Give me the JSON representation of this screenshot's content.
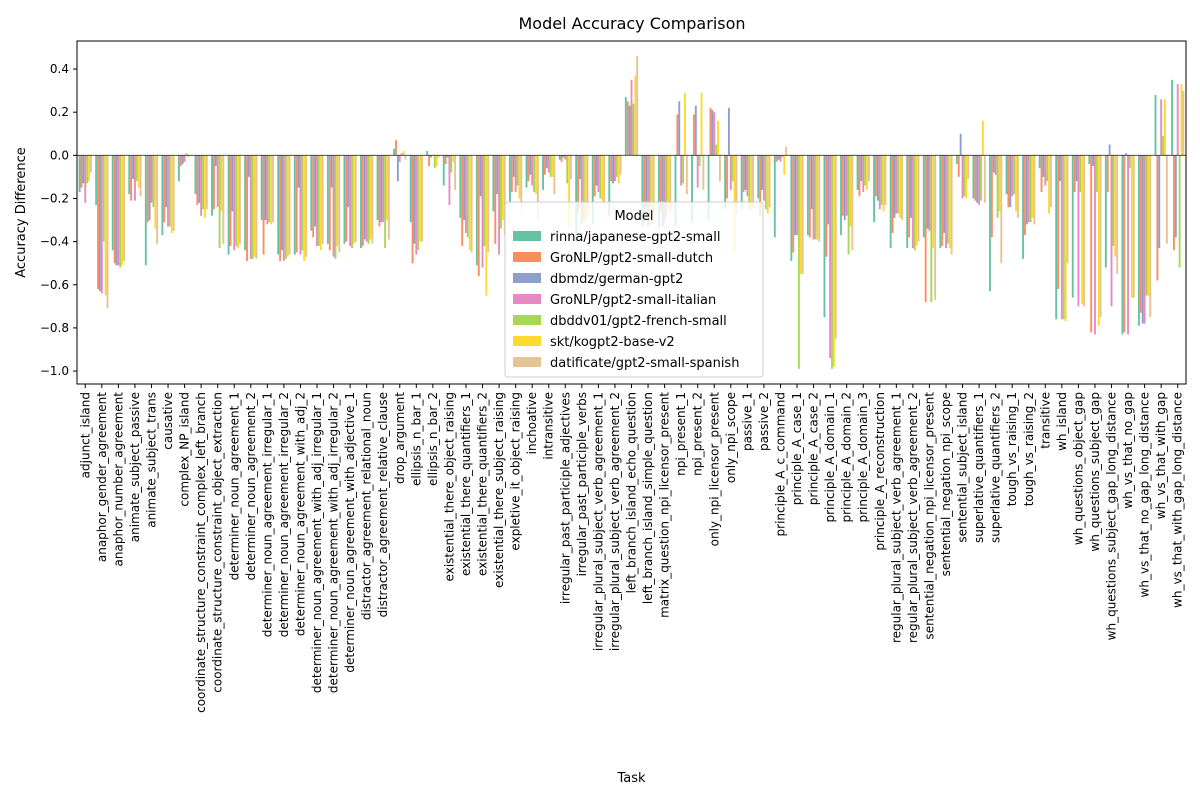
{
  "chart_data": {
    "type": "bar",
    "title": "Model Accuracy Comparison",
    "xlabel": "Task",
    "ylabel": "Accuracy Difference",
    "ylim": [
      -1.06,
      0.53
    ],
    "yticks": [
      0.4,
      0.2,
      0.0,
      -0.2,
      -0.4,
      -0.6,
      -0.8,
      -1.0
    ],
    "ytick_labels": [
      "0.4",
      "0.2",
      "0.0",
      "−0.2",
      "−0.4",
      "−0.6",
      "−0.8",
      "−1.0"
    ],
    "grid": false,
    "legend": {
      "title": "Model",
      "placement": "center"
    },
    "categories": [
      "adjunct_island",
      "anaphor_gender_agreement",
      "anaphor_number_agreement",
      "animate_subject_passive",
      "animate_subject_trans",
      "causative",
      "complex_NP_island",
      "coordinate_structure_constraint_complex_left_branch",
      "coordinate_structure_constraint_object_extraction",
      "determiner_noun_agreement_1",
      "determiner_noun_agreement_2",
      "determiner_noun_agreement_irregular_1",
      "determiner_noun_agreement_irregular_2",
      "determiner_noun_agreement_with_adj_2",
      "determiner_noun_agreement_with_adj_irregular_1",
      "determiner_noun_agreement_with_adj_irregular_2",
      "determiner_noun_agreement_with_adjective_1",
      "distractor_agreement_relational_noun",
      "distractor_agreement_relative_clause",
      "drop_argument",
      "ellipsis_n_bar_1",
      "ellipsis_n_bar_2",
      "existential_there_object_raising",
      "existential_there_quantifiers_1",
      "existential_there_quantifiers_2",
      "existential_there_subject_raising",
      "expletive_it_object_raising",
      "inchoative",
      "intransitive",
      "irregular_past_participle_adjectives",
      "irregular_past_participle_verbs",
      "irregular_plural_subject_verb_agreement_1",
      "irregular_plural_subject_verb_agreement_2",
      "left_branch_island_echo_question",
      "left_branch_island_simple_question",
      "matrix_question_npi_licensor_present",
      "npi_present_1",
      "npi_present_2",
      "only_npi_licensor_present",
      "only_npi_scope",
      "passive_1",
      "passive_2",
      "principle_A_c_command",
      "principle_A_case_1",
      "principle_A_case_2",
      "principle_A_domain_1",
      "principle_A_domain_2",
      "principle_A_domain_3",
      "principle_A_reconstruction",
      "regular_plural_subject_verb_agreement_1",
      "regular_plural_subject_verb_agreement_2",
      "sentential_negation_npi_licensor_present",
      "sentential_negation_npi_scope",
      "sentential_subject_island",
      "superlative_quantifiers_1",
      "superlative_quantifiers_2",
      "tough_vs_raising_1",
      "tough_vs_raising_2",
      "transitive",
      "wh_island",
      "wh_questions_object_gap",
      "wh_questions_subject_gap",
      "wh_questions_subject_gap_long_distance",
      "wh_vs_that_no_gap",
      "wh_vs_that_no_gap_long_distance",
      "wh_vs_that_with_gap",
      "wh_vs_that_with_gap_long_distance"
    ],
    "series": [
      {
        "name": "rinna/japanese-gpt2-small",
        "color": "#66c2a5",
        "values": [
          -0.17,
          -0.23,
          -0.44,
          -0.18,
          -0.51,
          -0.37,
          -0.12,
          -0.18,
          -0.28,
          -0.46,
          -0.44,
          -0.3,
          -0.46,
          -0.46,
          -0.35,
          -0.41,
          -0.41,
          -0.43,
          -0.3,
          0.03,
          -0.31,
          0.02,
          -0.14,
          -0.29,
          -0.51,
          -0.26,
          -0.22,
          -0.15,
          -0.16,
          -0.02,
          -0.4,
          -0.32,
          -0.28,
          0.27,
          -0.33,
          -0.34,
          -0.33,
          -0.31,
          -0.3,
          -0.25,
          -0.25,
          -0.2,
          -0.38,
          -0.49,
          -0.37,
          -0.75,
          -0.37,
          -0.16,
          -0.31,
          -0.43,
          -0.43,
          -0.38,
          -0.43,
          -0.04,
          -0.2,
          -0.63,
          -0.18,
          -0.48,
          -0.06,
          -0.76,
          -0.66,
          -0.04,
          -0.52,
          -0.83,
          -0.79,
          0.28,
          0.35
        ]
      },
      {
        "name": "GroNLP/gpt2-small-dutch",
        "color": "#fc8d62",
        "values": [
          -0.15,
          -0.62,
          -0.5,
          -0.21,
          -0.31,
          -0.31,
          -0.05,
          -0.23,
          -0.25,
          -0.42,
          -0.49,
          -0.46,
          -0.49,
          -0.45,
          -0.38,
          -0.44,
          -0.4,
          -0.42,
          -0.33,
          0.07,
          -0.5,
          -0.05,
          -0.04,
          -0.42,
          -0.56,
          -0.41,
          -0.17,
          -0.12,
          -0.09,
          -0.03,
          -0.27,
          -0.19,
          -0.12,
          0.25,
          -0.31,
          -0.26,
          0.19,
          0.19,
          0.22,
          -0.2,
          -0.17,
          -0.28,
          -0.03,
          -0.45,
          -0.38,
          -0.47,
          -0.28,
          -0.19,
          -0.19,
          -0.36,
          -0.38,
          -0.68,
          -0.42,
          -0.1,
          -0.21,
          -0.38,
          -0.24,
          -0.37,
          -0.17,
          -0.62,
          -0.17,
          -0.82,
          -0.17,
          -0.82,
          -0.73,
          -0.58,
          -0.44
        ]
      },
      {
        "name": "dbmdz/german-gpt2",
        "color": "#8da0cb",
        "values": [
          -0.13,
          -0.63,
          -0.51,
          -0.11,
          -0.3,
          -0.24,
          -0.04,
          -0.22,
          -0.05,
          -0.26,
          -0.1,
          -0.3,
          -0.44,
          -0.15,
          -0.33,
          -0.15,
          -0.24,
          -0.39,
          -0.31,
          -0.12,
          -0.41,
          -0.01,
          -0.01,
          -0.3,
          -0.19,
          -0.18,
          -0.1,
          -0.09,
          -0.06,
          -0.01,
          -0.11,
          -0.14,
          -0.13,
          0.23,
          -0.24,
          -0.33,
          0.25,
          0.23,
          0.21,
          0.22,
          -0.16,
          -0.16,
          -0.02,
          -0.37,
          -0.25,
          -0.32,
          -0.3,
          -0.12,
          -0.21,
          -0.29,
          -0.29,
          -0.34,
          -0.36,
          0.1,
          -0.22,
          -0.08,
          -0.24,
          -0.32,
          -0.1,
          -0.12,
          -0.12,
          -0.05,
          0.05,
          0.01,
          -0.78,
          -0.43,
          -0.38
        ]
      },
      {
        "name": "GroNLP/gpt2-small-italian",
        "color": "#e78ac3",
        "values": [
          -0.22,
          -0.64,
          -0.51,
          -0.21,
          -0.22,
          -0.33,
          -0.03,
          -0.28,
          -0.24,
          -0.44,
          -0.48,
          -0.32,
          -0.49,
          -0.46,
          -0.42,
          -0.47,
          -0.42,
          -0.4,
          -0.31,
          -0.03,
          -0.46,
          0.0,
          -0.23,
          -0.36,
          -0.52,
          -0.46,
          -0.17,
          -0.14,
          -0.08,
          -0.02,
          -0.32,
          -0.17,
          -0.12,
          0.35,
          -0.33,
          -0.31,
          -0.14,
          -0.15,
          0.2,
          -0.16,
          -0.19,
          -0.21,
          -0.03,
          -0.37,
          -0.39,
          -0.94,
          -0.28,
          -0.17,
          -0.25,
          -0.27,
          -0.43,
          -0.35,
          -0.43,
          -0.2,
          -0.23,
          -0.09,
          -0.19,
          -0.31,
          -0.14,
          -0.76,
          -0.7,
          -0.83,
          -0.7,
          -0.83,
          -0.78,
          0.26,
          0.33
        ]
      },
      {
        "name": "dbddv01/gpt2-french-small",
        "color": "#a6d854",
        "values": [
          -0.13,
          -0.4,
          -0.52,
          -0.12,
          -0.24,
          -0.33,
          0.01,
          -0.25,
          -0.43,
          -0.42,
          -0.48,
          -0.31,
          -0.48,
          -0.44,
          -0.42,
          -0.48,
          -0.43,
          -0.41,
          -0.43,
          0.01,
          -0.44,
          -0.06,
          -0.08,
          -0.38,
          -0.42,
          -0.34,
          -0.14,
          -0.17,
          -0.1,
          -0.13,
          -0.3,
          -0.2,
          -0.1,
          0.24,
          -0.32,
          -0.28,
          -0.13,
          -0.05,
          0.05,
          -0.12,
          -0.25,
          -0.25,
          -0.01,
          -0.99,
          -0.39,
          -0.99,
          -0.46,
          -0.14,
          -0.23,
          -0.27,
          -0.44,
          -0.68,
          -0.41,
          -0.19,
          -0.21,
          -0.29,
          -0.18,
          -0.31,
          -0.12,
          -0.76,
          -0.17,
          -0.17,
          -0.42,
          -0.06,
          -0.65,
          0.09,
          -0.52
        ]
      },
      {
        "name": "skt/kogpt2-base-v2",
        "color": "#ffd92f",
        "values": [
          -0.12,
          -0.65,
          -0.51,
          -0.15,
          -0.34,
          -0.36,
          -0.01,
          -0.29,
          -0.26,
          -0.43,
          -0.47,
          -0.32,
          -0.47,
          -0.49,
          -0.44,
          -0.42,
          -0.41,
          -0.39,
          -0.3,
          0.02,
          -0.4,
          -0.05,
          -0.03,
          -0.44,
          -0.65,
          -0.3,
          -0.2,
          -0.18,
          -0.1,
          -0.33,
          -0.31,
          -0.21,
          -0.13,
          0.37,
          -0.25,
          -0.24,
          0.29,
          0.29,
          0.16,
          -0.45,
          -0.25,
          -0.27,
          -0.09,
          -0.55,
          -0.39,
          -0.98,
          -0.33,
          -0.16,
          -0.26,
          -0.29,
          -0.42,
          -0.43,
          -0.43,
          -0.2,
          0.16,
          -0.26,
          -0.26,
          -0.29,
          -0.27,
          -0.77,
          -0.69,
          -0.79,
          -0.47,
          -0.66,
          -0.65,
          0.26,
          0.33
        ]
      },
      {
        "name": "datificate/gpt2-small-spanish",
        "color": "#e5c494",
        "values": [
          -0.08,
          -0.71,
          -0.49,
          -0.19,
          -0.41,
          -0.35,
          0.0,
          -0.25,
          -0.41,
          -0.41,
          -0.48,
          -0.31,
          -0.46,
          -0.47,
          -0.41,
          -0.45,
          -0.4,
          -0.41,
          -0.39,
          -0.02,
          -0.4,
          -0.01,
          -0.16,
          -0.45,
          -0.45,
          -0.37,
          -0.25,
          -0.3,
          -0.18,
          -0.11,
          -0.27,
          -0.23,
          -0.09,
          0.46,
          -0.26,
          -0.26,
          -0.18,
          -0.16,
          -0.12,
          -0.27,
          -0.25,
          -0.24,
          0.04,
          -0.55,
          -0.4,
          -0.85,
          -0.44,
          -0.12,
          -0.23,
          -0.3,
          -0.4,
          -0.67,
          -0.46,
          -0.11,
          -0.22,
          -0.5,
          -0.29,
          -0.32,
          -0.24,
          -0.5,
          -0.7,
          -0.75,
          -0.55,
          -0.66,
          -0.75,
          -0.41,
          0.3
        ]
      }
    ]
  }
}
